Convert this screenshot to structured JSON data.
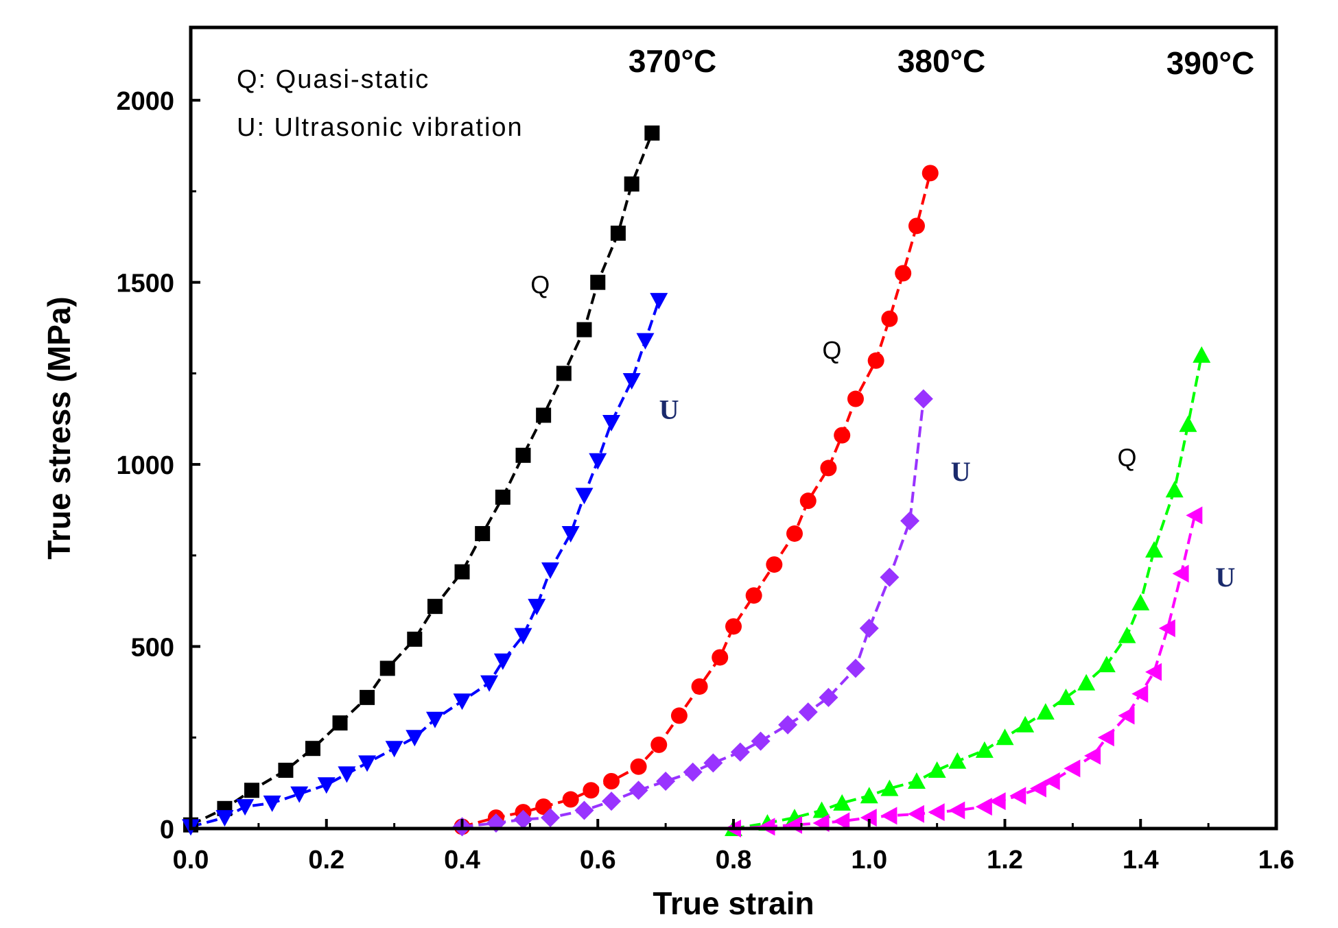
{
  "chart_data": {
    "type": "line",
    "title": "",
    "xlabel": "True strain",
    "ylabel": "True stress (MPa)",
    "xlim": [
      0.0,
      1.6
    ],
    "ylim": [
      0,
      2200
    ],
    "xticks": [
      "0.0",
      "0.2",
      "0.4",
      "0.6",
      "0.8",
      "1.0",
      "1.2",
      "1.4",
      "1.6"
    ],
    "yticks": [
      "0",
      "500",
      "1000",
      "1500",
      "2000"
    ],
    "legend_text": [
      "Q: Quasi-static",
      "U: Ultrasonic vibration"
    ],
    "temperature_labels": [
      "370°C",
      "380°C",
      "390°C"
    ],
    "curve_labels": {
      "q": "Q",
      "u": "U"
    },
    "series": [
      {
        "name": "370°C Q",
        "type": "Q",
        "temperature": "370°C",
        "marker": "square",
        "color": "#000000",
        "x": [
          0.0,
          0.05,
          0.09,
          0.14,
          0.18,
          0.22,
          0.26,
          0.29,
          0.33,
          0.36,
          0.4,
          0.43,
          0.46,
          0.49,
          0.52,
          0.55,
          0.58,
          0.6,
          0.63,
          0.65,
          0.68
        ],
        "y": [
          10,
          55,
          105,
          160,
          220,
          290,
          360,
          440,
          520,
          610,
          705,
          810,
          910,
          1025,
          1135,
          1250,
          1370,
          1500,
          1635,
          1770,
          1910
        ]
      },
      {
        "name": "370°C U",
        "type": "U",
        "temperature": "370°C",
        "marker": "triangle-down",
        "color": "#0000ff",
        "x": [
          0.0,
          0.05,
          0.08,
          0.12,
          0.16,
          0.2,
          0.23,
          0.26,
          0.3,
          0.33,
          0.36,
          0.4,
          0.44,
          0.46,
          0.49,
          0.51,
          0.53,
          0.56,
          0.58,
          0.6,
          0.62,
          0.65,
          0.67,
          0.69
        ],
        "y": [
          5,
          30,
          60,
          70,
          95,
          120,
          150,
          180,
          220,
          250,
          300,
          350,
          400,
          460,
          530,
          610,
          710,
          810,
          915,
          1010,
          1115,
          1230,
          1340,
          1450
        ]
      },
      {
        "name": "380°C Q",
        "type": "Q",
        "temperature": "380°C",
        "marker": "circle",
        "color": "#ff0000",
        "x": [
          0.4,
          0.45,
          0.49,
          0.52,
          0.56,
          0.59,
          0.62,
          0.66,
          0.69,
          0.72,
          0.75,
          0.78,
          0.8,
          0.83,
          0.86,
          0.89,
          0.91,
          0.94,
          0.96,
          0.98,
          1.01,
          1.03,
          1.05,
          1.07,
          1.09
        ],
        "y": [
          5,
          30,
          45,
          60,
          80,
          105,
          130,
          170,
          230,
          310,
          390,
          470,
          555,
          640,
          725,
          810,
          900,
          990,
          1080,
          1180,
          1285,
          1400,
          1525,
          1655,
          1800
        ]
      },
      {
        "name": "380°C U",
        "type": "U",
        "temperature": "380°C",
        "marker": "diamond",
        "color": "#9933ff",
        "x": [
          0.4,
          0.45,
          0.49,
          0.53,
          0.58,
          0.62,
          0.66,
          0.7,
          0.74,
          0.77,
          0.81,
          0.84,
          0.88,
          0.91,
          0.94,
          0.98,
          1.0,
          1.03,
          1.06,
          1.08
        ],
        "y": [
          5,
          15,
          25,
          30,
          50,
          75,
          105,
          130,
          155,
          180,
          210,
          240,
          285,
          320,
          360,
          440,
          550,
          690,
          845,
          1180
        ]
      },
      {
        "name": "390°C Q",
        "type": "Q",
        "temperature": "390°C",
        "marker": "triangle-up",
        "color": "#00ff00",
        "x": [
          0.8,
          0.85,
          0.89,
          0.93,
          0.96,
          1.0,
          1.03,
          1.07,
          1.1,
          1.13,
          1.17,
          1.2,
          1.23,
          1.26,
          1.29,
          1.32,
          1.35,
          1.38,
          1.4,
          1.42,
          1.45,
          1.47,
          1.49
        ],
        "y": [
          0,
          15,
          30,
          50,
          70,
          90,
          110,
          130,
          160,
          185,
          215,
          250,
          285,
          320,
          360,
          400,
          450,
          530,
          620,
          765,
          930,
          1110,
          1300
        ]
      },
      {
        "name": "390°C U",
        "type": "U",
        "temperature": "390°C",
        "marker": "triangle-left",
        "color": "#ff00ff",
        "x": [
          0.8,
          0.85,
          0.89,
          0.93,
          0.96,
          1.0,
          1.03,
          1.07,
          1.1,
          1.13,
          1.17,
          1.19,
          1.22,
          1.25,
          1.27,
          1.3,
          1.33,
          1.35,
          1.38,
          1.4,
          1.42,
          1.44,
          1.46,
          1.48
        ],
        "y": [
          0,
          5,
          10,
          15,
          20,
          30,
          35,
          40,
          45,
          50,
          60,
          75,
          90,
          110,
          130,
          165,
          200,
          250,
          310,
          370,
          430,
          550,
          700,
          860
        ]
      }
    ]
  }
}
